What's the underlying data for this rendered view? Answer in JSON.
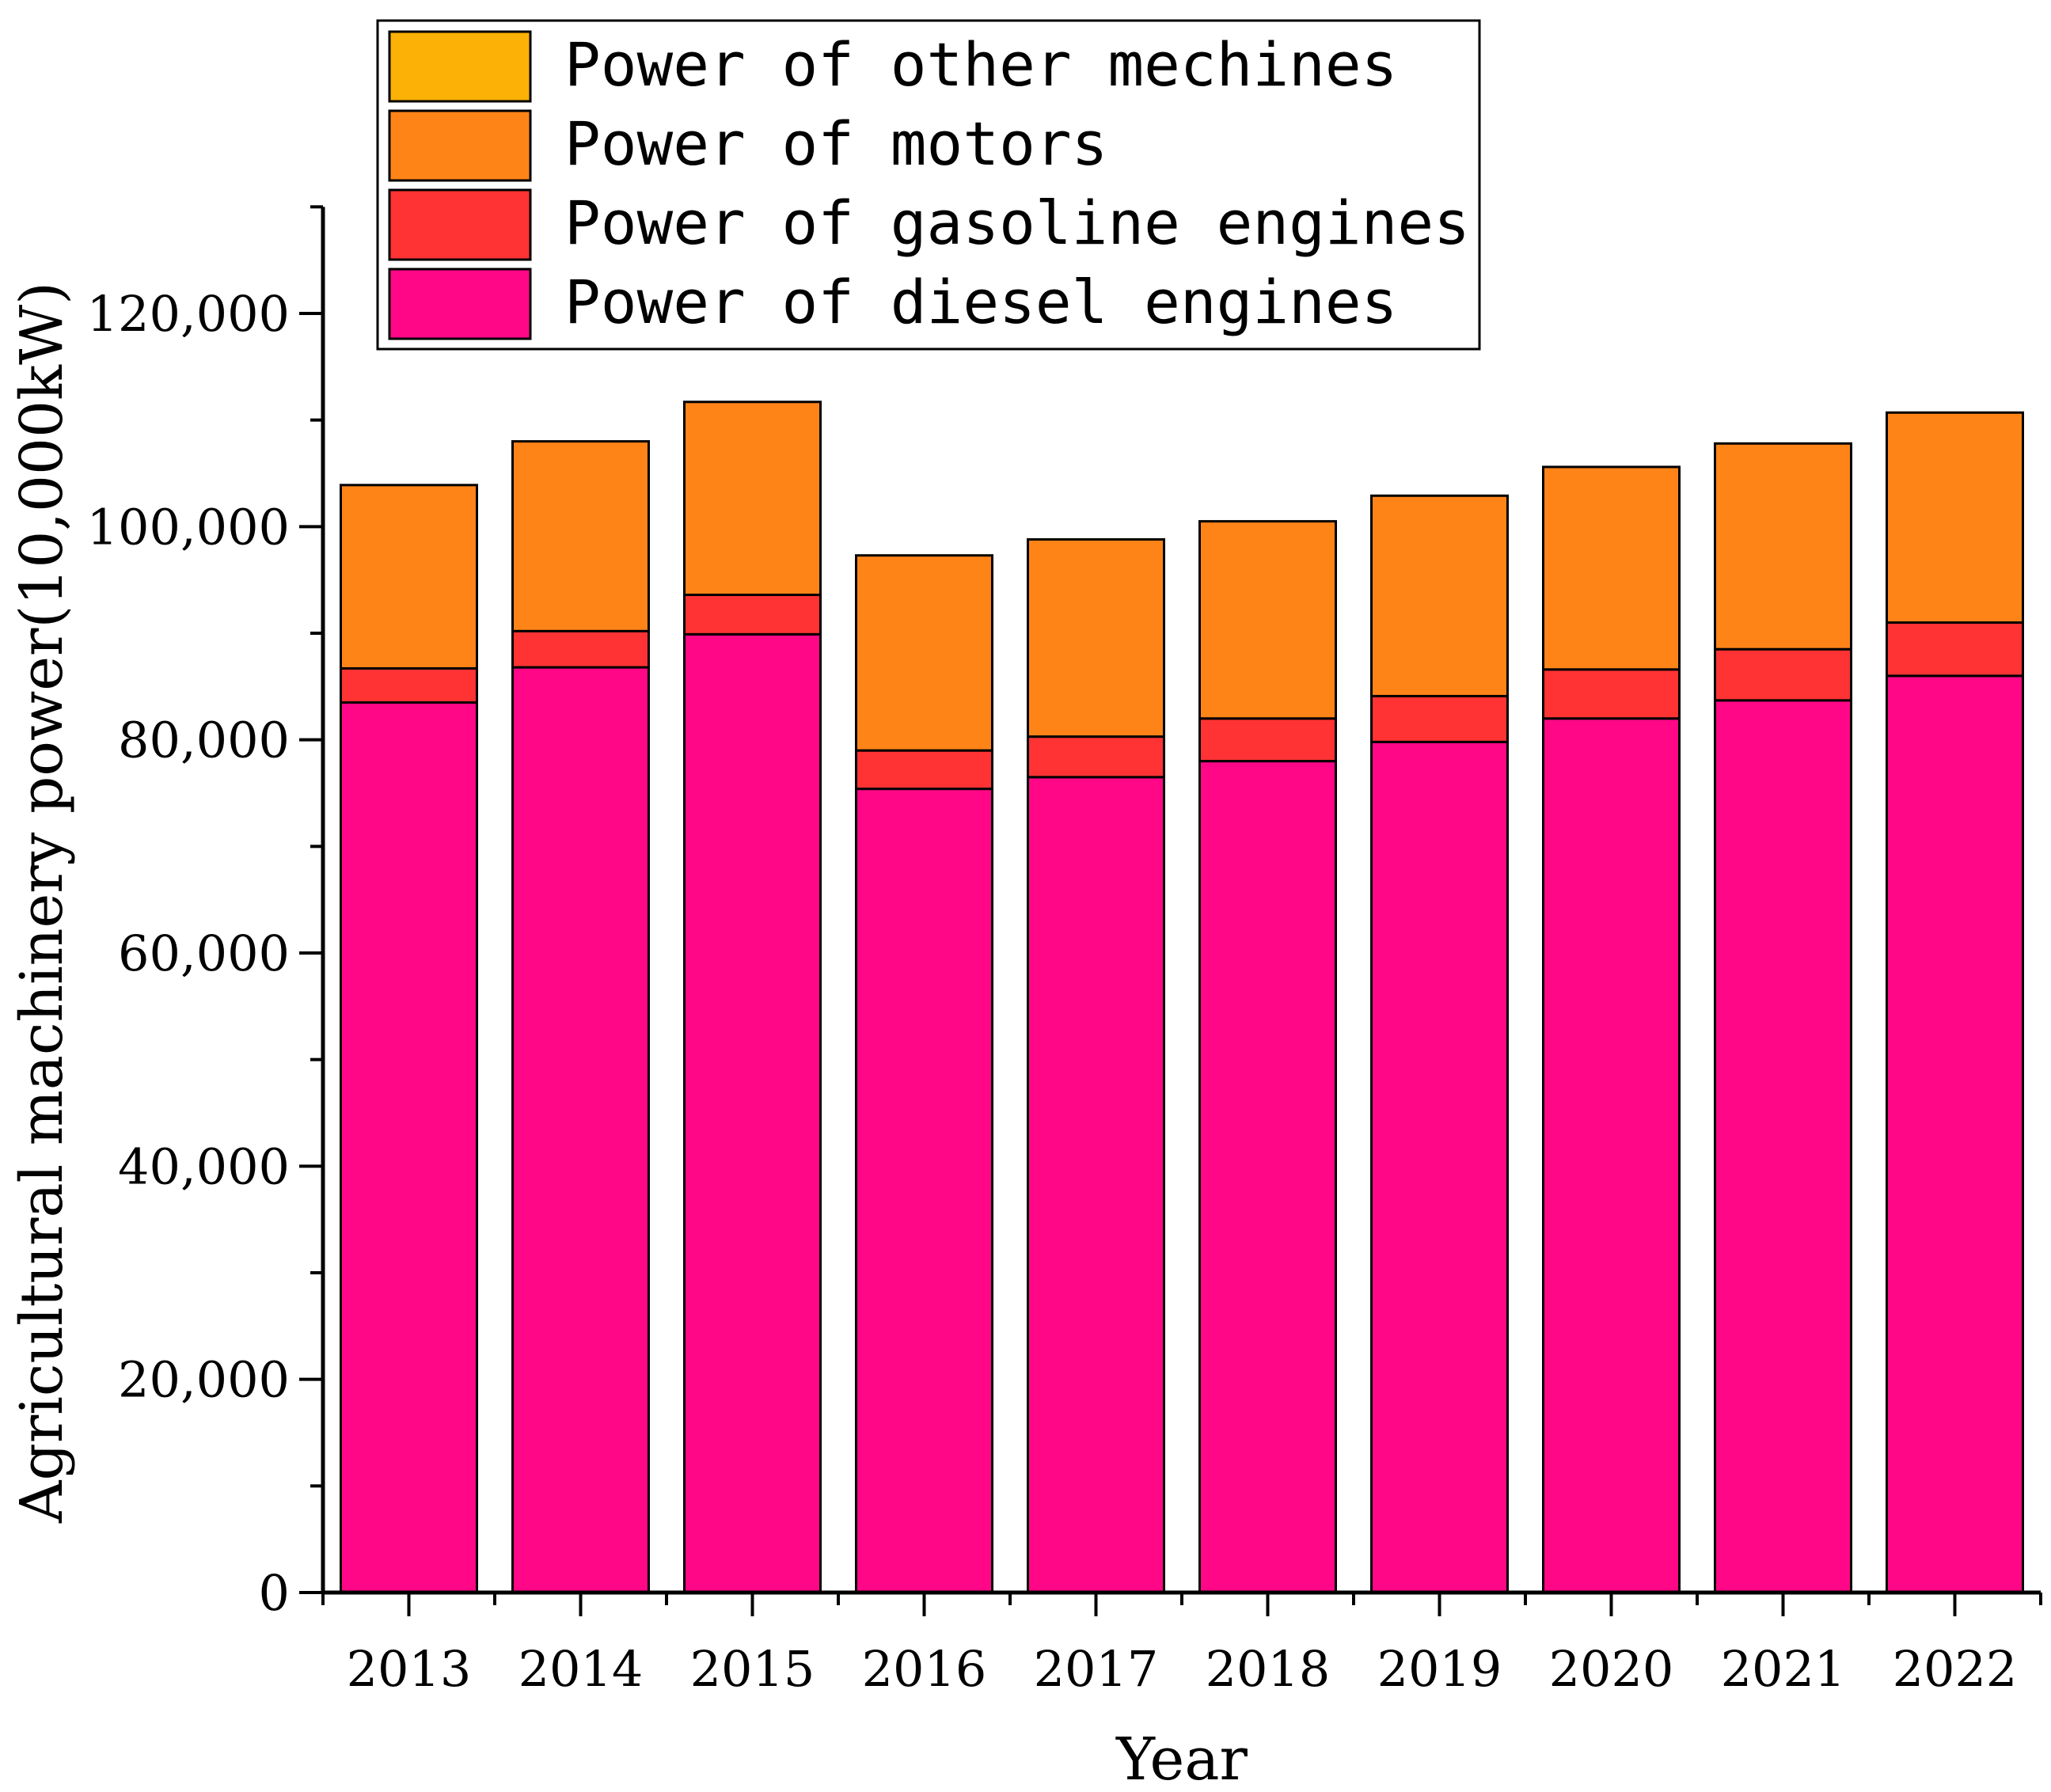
{
  "chart_data": {
    "type": "bar",
    "stacked": true,
    "title": "",
    "xlabel": "Year",
    "ylabel": "Agricultural machinery power(10,000kW)",
    "categories": [
      "2013",
      "2014",
      "2015",
      "2016",
      "2017",
      "2018",
      "2019",
      "2020",
      "2021",
      "2022"
    ],
    "ylim": [
      0,
      130000
    ],
    "yticks": [
      0,
      20000,
      40000,
      60000,
      80000,
      100000,
      120000
    ],
    "ytick_labels": [
      "0",
      "20,000",
      "40,000",
      "60,000",
      "80,000",
      "100,000",
      "120,000"
    ],
    "legend_position": "top-center",
    "series": [
      {
        "name": "Power of diesel engines",
        "color": "#ff0787",
        "values": [
          83500,
          86800,
          89900,
          75400,
          76500,
          78000,
          79800,
          82000,
          83700,
          86000
        ]
      },
      {
        "name": "Power of gasoline engines",
        "color": "#ff3333",
        "values": [
          3200,
          3400,
          3700,
          3600,
          3800,
          4000,
          4300,
          4600,
          4800,
          5000
        ]
      },
      {
        "name": "Power of motors",
        "color": "#ff8418",
        "values": [
          17200,
          17800,
          18100,
          18300,
          18500,
          18500,
          18800,
          19000,
          19300,
          19700
        ]
      },
      {
        "name": "Power of other mechines",
        "color": "#fbb105",
        "values": [
          0,
          0,
          0,
          0,
          0,
          0,
          0,
          0,
          0,
          0
        ]
      }
    ],
    "legend_order": [
      "Power of other mechines",
      "Power of motors",
      "Power of gasoline engines",
      "Power of diesel engines"
    ]
  }
}
